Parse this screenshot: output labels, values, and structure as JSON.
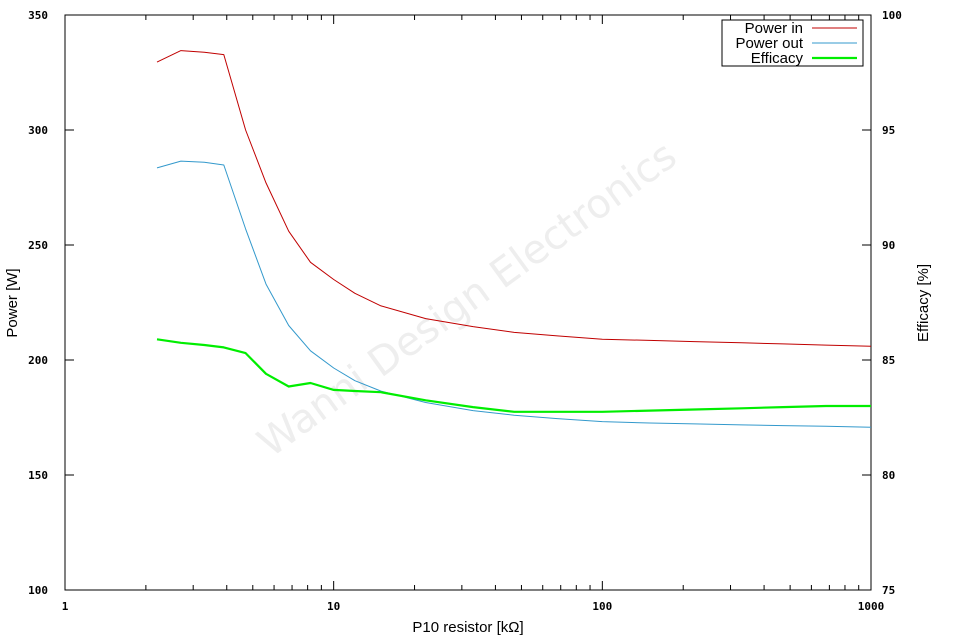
{
  "chart_data": {
    "type": "line",
    "title": "",
    "xlabel": "P10 resistor [kΩ]",
    "ylabel": "Power [W]",
    "y2label": "Efficacy [%]",
    "x_scale": "log",
    "xlim": [
      1,
      1000
    ],
    "ylim": [
      100,
      350
    ],
    "y2lim": [
      75,
      100
    ],
    "x_ticks": [
      {
        "value": 1,
        "label": "1"
      },
      {
        "value": 10,
        "label": "10"
      },
      {
        "value": 100,
        "label": "100"
      },
      {
        "value": 1000,
        "label": "1000"
      }
    ],
    "y_ticks": [
      {
        "value": 100,
        "label": "100"
      },
      {
        "value": 150,
        "label": "150"
      },
      {
        "value": 200,
        "label": "200"
      },
      {
        "value": 250,
        "label": "250"
      },
      {
        "value": 300,
        "label": "300"
      },
      {
        "value": 350,
        "label": "350"
      }
    ],
    "y2_ticks": [
      {
        "value": 75,
        "label": "75"
      },
      {
        "value": 80,
        "label": "80"
      },
      {
        "value": 85,
        "label": "85"
      },
      {
        "value": 90,
        "label": "90"
      },
      {
        "value": 95,
        "label": "95"
      },
      {
        "value": 100,
        "label": "100"
      }
    ],
    "grid": false,
    "legend_position": "top-right",
    "series": [
      {
        "name": "Power in",
        "axis": "left",
        "color": "#c00000",
        "x": [
          2.2,
          2.7,
          3.3,
          3.9,
          4.7,
          5.6,
          6.8,
          8.2,
          10,
          12,
          15,
          22,
          33,
          47,
          68,
          100,
          150,
          220,
          330,
          470,
          680,
          1000
        ],
        "y": [
          329.5,
          334.5,
          333.8,
          332.8,
          300,
          277,
          256,
          242.5,
          235,
          229,
          223.5,
          218,
          214.5,
          212,
          210.5,
          209,
          208.5,
          208,
          207.5,
          207,
          206.5,
          206
        ]
      },
      {
        "name": "Power out",
        "axis": "left",
        "color": "#3399cc",
        "x": [
          2.2,
          2.7,
          3.3,
          3.9,
          4.7,
          5.6,
          6.8,
          8.2,
          10,
          12,
          15,
          22,
          33,
          47,
          68,
          100,
          150,
          220,
          330,
          470,
          680,
          1000
        ],
        "y": [
          283.5,
          286.5,
          286,
          284.8,
          257,
          233,
          215,
          204,
          196.5,
          191,
          186.5,
          181.5,
          178,
          176,
          174.5,
          173.2,
          172.6,
          172.2,
          171.8,
          171.5,
          171.2,
          170.8
        ]
      },
      {
        "name": "Efficacy",
        "axis": "right",
        "color": "#00ee00",
        "x": [
          2.2,
          2.7,
          3.3,
          3.9,
          4.7,
          5.6,
          6.8,
          8.2,
          10,
          12,
          15,
          22,
          33,
          47,
          68,
          100,
          150,
          220,
          330,
          470,
          680,
          1000
        ],
        "y": [
          85.9,
          85.75,
          85.65,
          85.55,
          85.3,
          84.4,
          83.85,
          84.0,
          83.7,
          83.65,
          83.6,
          83.25,
          82.95,
          82.75,
          82.75,
          82.75,
          82.8,
          82.85,
          82.9,
          82.95,
          83.0,
          83.0
        ]
      }
    ],
    "watermark": "Wanni Design Electronics"
  }
}
